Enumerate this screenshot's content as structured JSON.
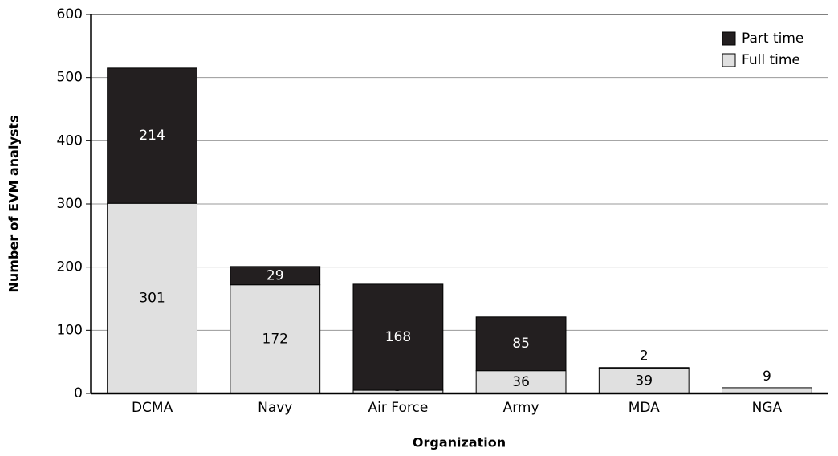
{
  "chart_data": {
    "type": "stacked_bar",
    "x_label": "Organization",
    "y_label": "Number of EVM analysts",
    "categories": [
      "DCMA",
      "Navy",
      "Air Force",
      "Army",
      "MDA",
      "NGA"
    ],
    "series": [
      {
        "name": "Full time",
        "color": "#e0e0e0",
        "values": [
          301,
          172,
          5,
          36,
          39,
          9
        ]
      },
      {
        "name": "Part time",
        "color": "#231f20",
        "values": [
          214,
          29,
          168,
          85,
          2,
          null
        ]
      }
    ],
    "ylim": [
      0,
      600
    ],
    "yticks": [
      0,
      100,
      200,
      300,
      400,
      500,
      600
    ],
    "grid": true,
    "legend": "top-right"
  }
}
